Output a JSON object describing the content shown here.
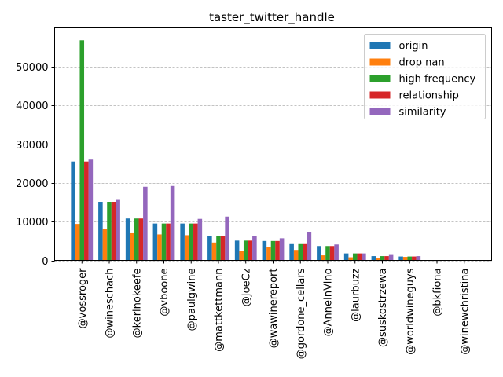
{
  "chart_data": {
    "type": "bar",
    "title": "taster_twitter_handle",
    "xlabel": "",
    "ylabel": "",
    "ylim": [
      0,
      60000
    ],
    "yticks": [
      0,
      10000,
      20000,
      30000,
      40000,
      50000
    ],
    "ytick_labels": [
      "0",
      "10000",
      "20000",
      "30000",
      "40000",
      "50000"
    ],
    "grid": "y-dashed",
    "legend_position": "top-right",
    "categories": [
      "@vossroger",
      "@wineschach",
      "@kerinokeefe",
      "@vboone",
      "@paulgwine",
      "@mattkettmann",
      "@JoeCz",
      "@wawinereport",
      "@gordone_cellars",
      "@AnneInVino",
      "@laurbuzz",
      "@suskostrzewa",
      "@worldwineguys",
      "@bkfiona",
      "@winewchristina"
    ],
    "series": [
      {
        "name": "origin",
        "color": "#1f77b4",
        "values": [
          25500,
          15100,
          10800,
          9500,
          9500,
          6300,
          5100,
          5000,
          4200,
          3700,
          1800,
          1100,
          1000,
          30,
          5
        ]
      },
      {
        "name": "drop nan",
        "color": "#ff7f0e",
        "values": [
          9400,
          8100,
          7000,
          6700,
          6500,
          4600,
          2400,
          3400,
          2700,
          1300,
          800,
          500,
          900,
          20,
          5
        ]
      },
      {
        "name": "high frequency",
        "color": "#2ca02c",
        "values": [
          56800,
          15100,
          10800,
          9500,
          9500,
          6300,
          5100,
          5000,
          4200,
          3700,
          1800,
          1100,
          1000,
          30,
          5
        ]
      },
      {
        "name": "relationship",
        "color": "#d62728",
        "values": [
          25500,
          15100,
          10800,
          9500,
          9500,
          6300,
          5100,
          5000,
          4200,
          3700,
          1800,
          1100,
          1000,
          30,
          5
        ]
      },
      {
        "name": "similarity",
        "color": "#9467bd",
        "values": [
          26000,
          15600,
          19000,
          19200,
          10700,
          11300,
          6300,
          5700,
          7200,
          4100,
          1800,
          1400,
          1100,
          40,
          5
        ]
      }
    ]
  }
}
